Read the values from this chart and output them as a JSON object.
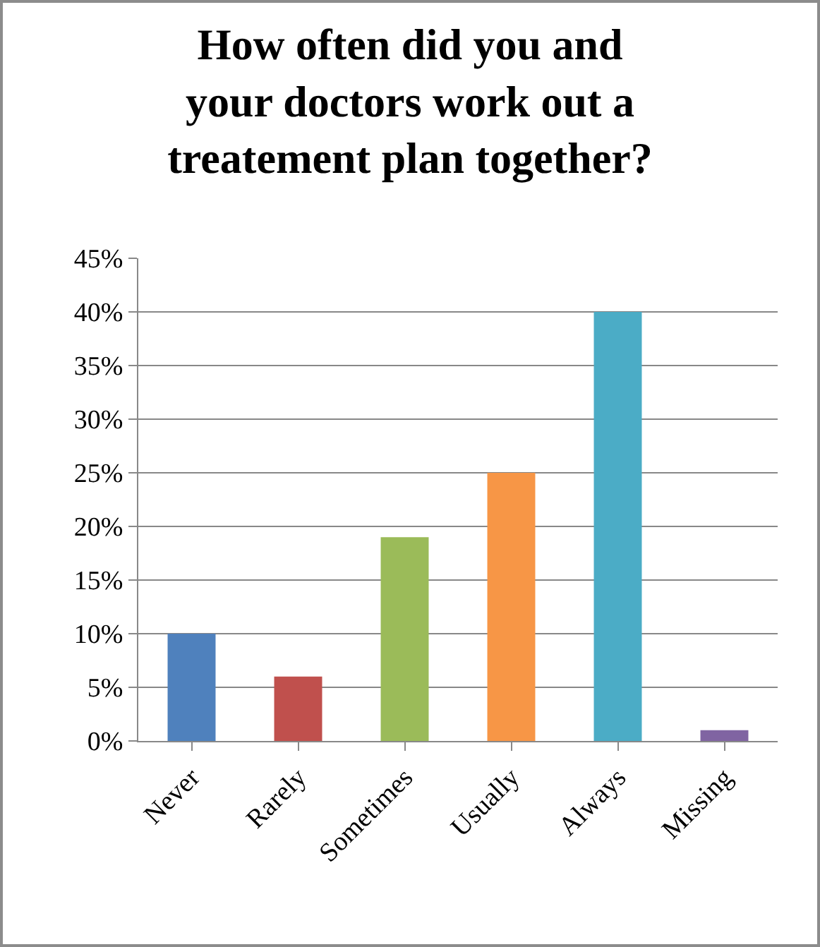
{
  "chart_data": {
    "type": "bar",
    "title": "How often did you and\nyour doctors work out a\ntreatement plan together?",
    "categories": [
      "Never",
      "Rarely",
      "Sometimes",
      "Usually",
      "Always",
      "Missing"
    ],
    "values": [
      10,
      6,
      19,
      25,
      40,
      1
    ],
    "colors": [
      "#4f81bd",
      "#c0504d",
      "#9bbb59",
      "#f79646",
      "#4bacc6",
      "#8064a2"
    ],
    "ylim": [
      0,
      45
    ],
    "yticks": [
      {
        "value": 0,
        "label": "0%"
      },
      {
        "value": 5,
        "label": "5%"
      },
      {
        "value": 10,
        "label": "10%"
      },
      {
        "value": 15,
        "label": "15%"
      },
      {
        "value": 20,
        "label": "20%"
      },
      {
        "value": 25,
        "label": "25%"
      },
      {
        "value": 30,
        "label": "30%"
      },
      {
        "value": 35,
        "label": "35%"
      },
      {
        "value": 40,
        "label": "40%"
      },
      {
        "value": 45,
        "label": "45%"
      }
    ],
    "grid": true
  }
}
